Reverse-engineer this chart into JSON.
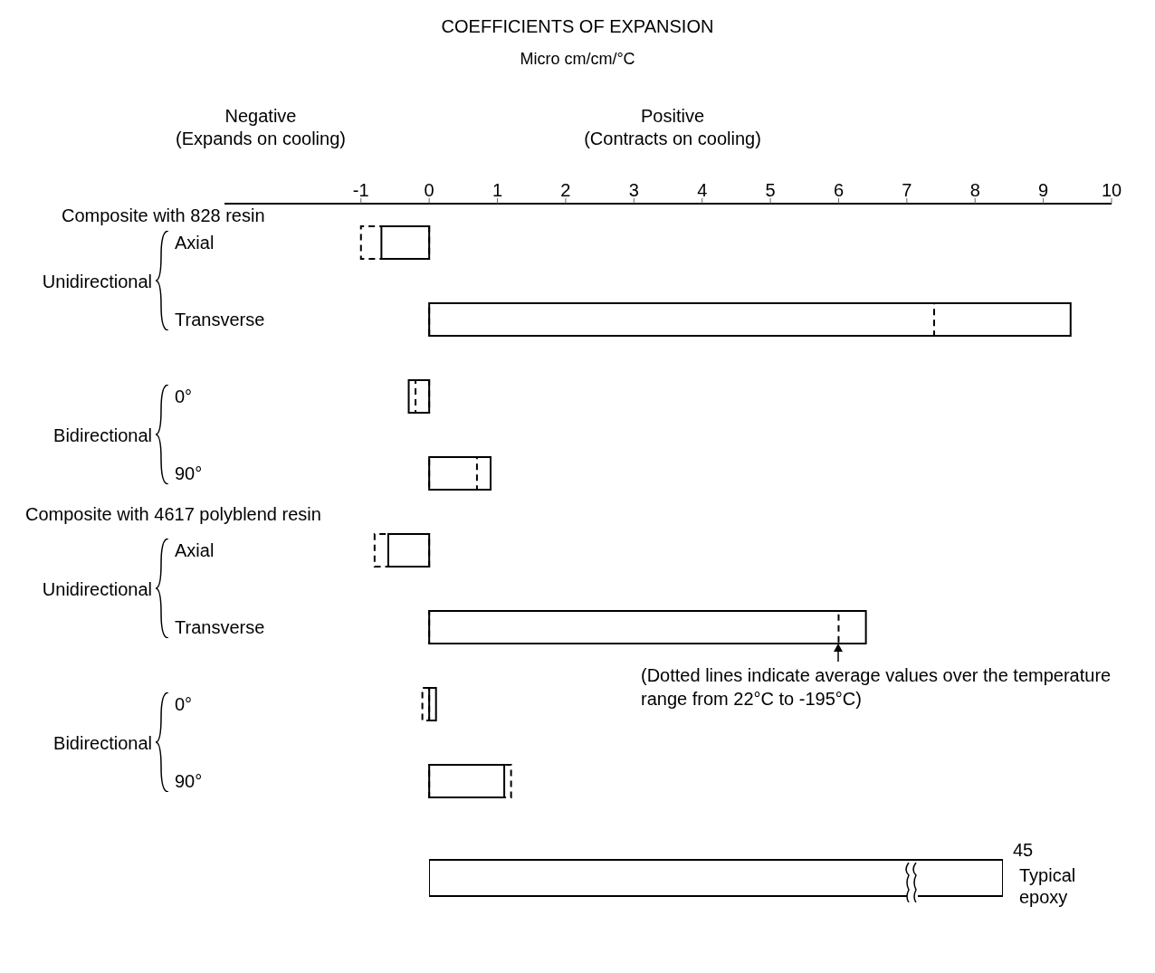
{
  "chart_data": [
    {
      "type": "bar",
      "orientation": "horizontal",
      "title": "COEFFICIENTS OF EXPANSION",
      "subtitle": "Micro cm/cm/°C",
      "categories": [
        "Axial",
        "Transverse",
        "0°",
        "90°",
        "Axial",
        "Transverse",
        "0°",
        "90°"
      ],
      "series": [
        {
          "color": "#000000",
          "line_style": "solid",
          "values": [
            -0.7,
            9.4,
            -0.3,
            0.9,
            -0.6,
            6.4,
            0.1,
            1.1
          ]
        },
        {
          "color": "#000000",
          "line_style": "dashed",
          "values": [
            -1.0,
            7.4,
            -0.2,
            0.7,
            -0.8,
            6.0,
            -0.1,
            1.2
          ]
        }
      ],
      "xlim": [
        -3,
        10
      ],
      "xticks": [
        -1,
        0,
        1,
        2,
        3,
        4,
        5,
        6,
        7,
        8,
        9,
        10
      ],
      "annotations": [
        "Negative",
        "(Expands on cooling)",
        "Positive",
        "(Contracts on cooling)",
        "Composite with 828 resin",
        "Unidirectional",
        "Bidirectional",
        "Composite with 4617 polyblend resin",
        "Unidirectional",
        "Bidirectional",
        "(Dotted lines indicate average values over the temperature range from 22°C to -195°C)"
      ]
    },
    {
      "type": "bar",
      "orientation": "horizontal",
      "categories": [
        "Typical epoxy"
      ],
      "series": [
        {
          "color": "#000000",
          "line_style": "solid",
          "values": [
            45
          ]
        }
      ],
      "tick_labels": "y",
      "data_labels": true
    }
  ]
}
